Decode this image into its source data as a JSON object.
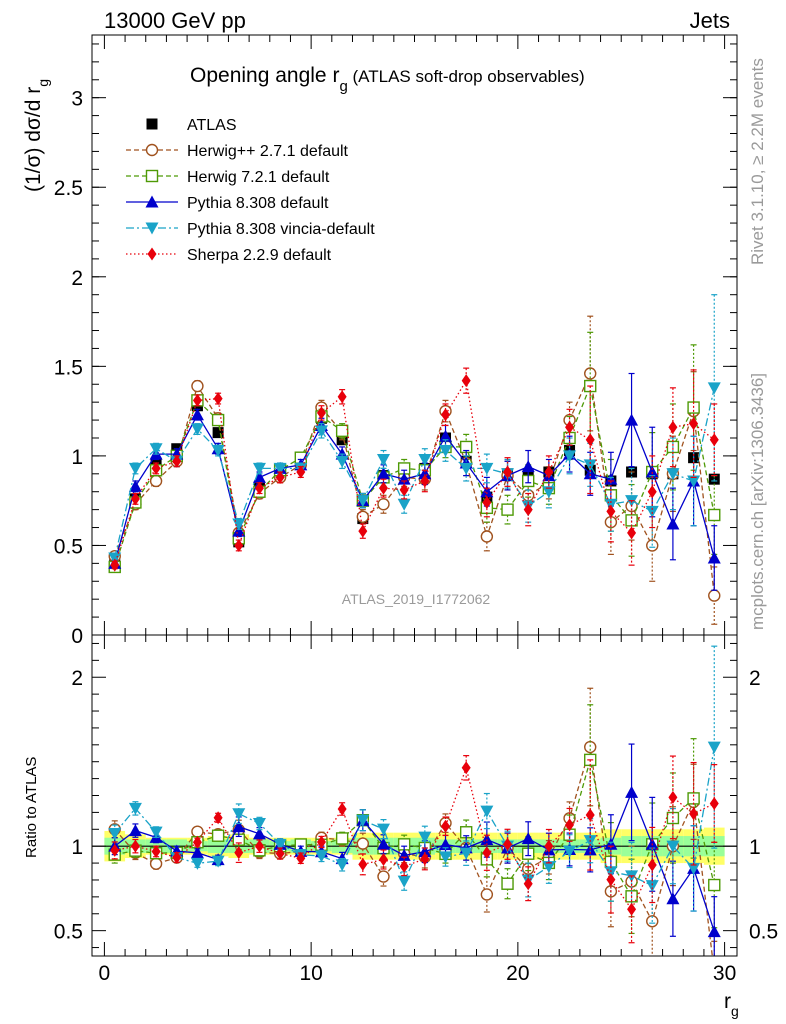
{
  "header": {
    "left": "13000 GeV pp",
    "right": "Jets"
  },
  "side_labels": {
    "rivet": "Rivet 3.1.10, ≥ 2.2M events",
    "mcplots": "mcplots.cern.ch [arXiv:1306.3436]"
  },
  "chart_data": [
    {
      "type": "scatter",
      "title": "Opening angle r",
      "title_sub": "g",
      "title_suffix": " (ATLAS soft-drop observables)",
      "ylabel": "(1/σ) dσ/d r",
      "ylabel_sub": "g",
      "watermark": "ATLAS_2019_I1772062",
      "ylim": [
        0,
        3.35
      ],
      "xlim": [
        -0.6,
        30.6
      ],
      "yticks": [
        0,
        0.5,
        1,
        1.5,
        2,
        2.5,
        3
      ],
      "ytick_labels": [
        "0",
        "0.5",
        "1",
        "1.5",
        "2",
        "2.5",
        "3"
      ],
      "grid": false,
      "legend_position": "top-left",
      "x": [
        0.5,
        1.5,
        2.5,
        3.5,
        4.5,
        5.5,
        6.5,
        7.5,
        8.5,
        9.5,
        10.5,
        11.5,
        12.5,
        13.5,
        14.5,
        15.5,
        16.5,
        17.5,
        18.5,
        19.5,
        20.5,
        21.5,
        22.5,
        23.5,
        24.5,
        25.5,
        26.5,
        27.5,
        28.5,
        29.5
      ],
      "series": [
        {
          "name": "ATLAS",
          "color": "#000000",
          "marker": "square-filled",
          "line": "none",
          "values": [
            0.4,
            0.76,
            0.96,
            1.04,
            1.28,
            1.13,
            0.52,
            0.82,
            0.92,
            0.98,
            1.21,
            1.09,
            0.65,
            0.89,
            0.92,
            0.93,
            1.1,
            0.97,
            0.77,
            0.9,
            0.9,
            0.91,
            1.03,
            0.92,
            0.86,
            0.91,
            0.9,
            0.9,
            0.99,
            0.87
          ]
        },
        {
          "name": "Herwig++ 2.7.1 default",
          "color": "#a0521e",
          "marker": "circle-open",
          "line": "dashed",
          "values": [
            0.44,
            0.73,
            0.86,
            0.97,
            1.39,
            1.21,
            0.57,
            0.79,
            0.88,
            0.95,
            1.27,
            1.13,
            0.66,
            0.73,
            0.88,
            0.87,
            1.25,
            0.96,
            0.55,
            0.89,
            0.78,
            0.85,
            1.2,
            1.46,
            0.63,
            0.72,
            0.5,
            0.9,
            1.25,
            0.22
          ],
          "errors": [
            0.02,
            0.03,
            0.03,
            0.03,
            0.03,
            0.03,
            0.03,
            0.03,
            0.03,
            0.03,
            0.04,
            0.04,
            0.04,
            0.05,
            0.05,
            0.06,
            0.06,
            0.07,
            0.08,
            0.08,
            0.09,
            0.09,
            0.1,
            0.32,
            0.18,
            0.19,
            0.2,
            0.21,
            0.22,
            0.16
          ]
        },
        {
          "name": "Herwig 7.2.1 default",
          "color": "#4e9a06",
          "marker": "square-open",
          "line": "dashed",
          "values": [
            0.38,
            0.74,
            0.92,
            1.0,
            1.31,
            1.2,
            0.54,
            0.8,
            0.92,
            0.99,
            1.22,
            1.14,
            0.75,
            0.88,
            0.93,
            0.92,
            1.05,
            1.05,
            0.71,
            0.7,
            0.86,
            0.82,
            1.1,
            1.39,
            0.78,
            0.64,
            0.91,
            1.05,
            1.27,
            0.67
          ],
          "errors": [
            0.02,
            0.03,
            0.03,
            0.03,
            0.03,
            0.03,
            0.03,
            0.03,
            0.03,
            0.03,
            0.04,
            0.04,
            0.04,
            0.05,
            0.05,
            0.06,
            0.06,
            0.07,
            0.08,
            0.08,
            0.09,
            0.09,
            0.12,
            0.3,
            0.2,
            0.2,
            0.22,
            0.24,
            0.35,
            0.22
          ]
        },
        {
          "name": "Pythia 8.308 default",
          "color": "#0000cc",
          "marker": "triangle-up-filled",
          "line": "solid",
          "values": [
            0.4,
            0.83,
            1.01,
            1.01,
            1.23,
            1.04,
            0.58,
            0.88,
            0.93,
            0.95,
            1.17,
            1.01,
            0.75,
            0.9,
            0.87,
            0.9,
            1.11,
            0.96,
            0.8,
            0.89,
            0.94,
            0.89,
            1.01,
            0.9,
            0.87,
            1.2,
            0.91,
            0.62,
            0.86,
            0.43
          ],
          "errors": [
            0.02,
            0.03,
            0.03,
            0.03,
            0.03,
            0.03,
            0.03,
            0.03,
            0.03,
            0.03,
            0.04,
            0.04,
            0.04,
            0.05,
            0.05,
            0.06,
            0.06,
            0.07,
            0.08,
            0.08,
            0.09,
            0.09,
            0.1,
            0.12,
            0.15,
            0.26,
            0.25,
            0.2,
            0.25,
            0.18
          ]
        },
        {
          "name": "Pythia 8.308 vincia-default",
          "color": "#1aa3c8",
          "marker": "triangle-down-filled",
          "line": "dashdot",
          "values": [
            0.43,
            0.93,
            1.04,
            0.97,
            1.15,
            1.03,
            0.62,
            0.93,
            0.93,
            0.93,
            1.14,
            0.97,
            0.75,
            0.98,
            0.73,
            0.98,
            1.03,
            0.93,
            0.93,
            0.9,
            0.72,
            0.8,
            1.0,
            0.95,
            0.73,
            0.75,
            0.69,
            0.9,
            0.86,
            1.38
          ],
          "errors": [
            0.02,
            0.03,
            0.03,
            0.03,
            0.03,
            0.03,
            0.03,
            0.03,
            0.03,
            0.03,
            0.04,
            0.04,
            0.04,
            0.05,
            0.05,
            0.06,
            0.06,
            0.07,
            0.08,
            0.08,
            0.09,
            0.09,
            0.1,
            0.12,
            0.15,
            0.18,
            0.2,
            0.2,
            0.25,
            0.52
          ]
        },
        {
          "name": "Sherpa 2.2.9 default",
          "color": "#e8000b",
          "marker": "diamond-filled",
          "line": "dotted",
          "values": [
            0.39,
            0.76,
            0.93,
            0.97,
            1.31,
            1.32,
            0.5,
            0.82,
            0.88,
            0.91,
            1.24,
            1.33,
            0.58,
            0.82,
            0.81,
            0.86,
            1.23,
            1.42,
            0.74,
            0.91,
            0.7,
            0.91,
            1.16,
            1.09,
            0.69,
            0.57,
            0.8,
            1.16,
            1.18,
            1.09
          ],
          "errors": [
            0.02,
            0.03,
            0.03,
            0.03,
            0.03,
            0.03,
            0.03,
            0.03,
            0.03,
            0.03,
            0.04,
            0.04,
            0.04,
            0.05,
            0.05,
            0.06,
            0.06,
            0.07,
            0.08,
            0.08,
            0.09,
            0.09,
            0.1,
            0.3,
            0.17,
            0.18,
            0.2,
            0.22,
            0.3,
            0.2
          ]
        }
      ]
    },
    {
      "type": "scatter",
      "title": "",
      "xlabel": "r",
      "xlabel_sub": "g",
      "ylabel": "Ratio to ATLAS",
      "ylim": [
        0.35,
        2.25
      ],
      "xlim": [
        -0.6,
        30.6
      ],
      "xticks": [
        0,
        10,
        20,
        30
      ],
      "xtick_labels": [
        "0",
        "10",
        "20",
        "30"
      ],
      "yticks": [
        0.5,
        1,
        2
      ],
      "ytick_labels": [
        "0.5",
        "1",
        "2"
      ],
      "reference_line": 1,
      "band_colors": {
        "outer": "#ffff66",
        "inner": "#99ff99"
      },
      "band_1sigma": [
        0.05,
        0.04,
        0.04,
        0.04,
        0.03,
        0.04,
        0.04,
        0.04,
        0.03,
        0.04,
        0.03,
        0.04,
        0.05,
        0.05,
        0.05,
        0.05,
        0.04,
        0.04,
        0.04,
        0.04,
        0.04,
        0.04,
        0.04,
        0.04,
        0.05,
        0.06,
        0.06,
        0.06,
        0.06,
        0.06
      ],
      "band_total": [
        0.09,
        0.07,
        0.05,
        0.05,
        0.05,
        0.06,
        0.07,
        0.05,
        0.05,
        0.05,
        0.05,
        0.05,
        0.08,
        0.08,
        0.08,
        0.08,
        0.08,
        0.08,
        0.08,
        0.08,
        0.08,
        0.08,
        0.08,
        0.08,
        0.1,
        0.1,
        0.1,
        0.1,
        0.1,
        0.11
      ]
    }
  ]
}
